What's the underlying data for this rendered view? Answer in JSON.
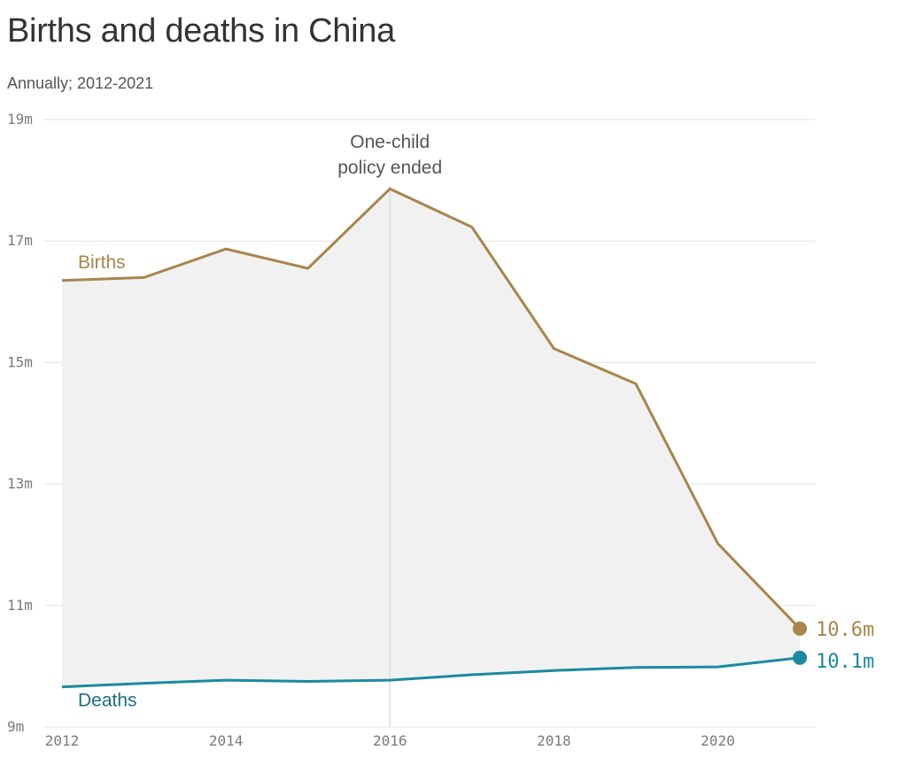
{
  "header": {
    "title": "Births and deaths in China",
    "subtitle": "Annually; 2012-2021"
  },
  "chart_data": {
    "type": "line",
    "x": [
      2012,
      2013,
      2014,
      2015,
      2016,
      2017,
      2018,
      2019,
      2020,
      2021
    ],
    "series": [
      {
        "name": "Births",
        "color": "#a8854a",
        "values": [
          16.35,
          16.4,
          16.87,
          16.55,
          17.86,
          17.23,
          15.23,
          14.65,
          12.02,
          10.62
        ],
        "end_label": "10.6m"
      },
      {
        "name": "Deaths",
        "color": "#1b8aa0",
        "values": [
          9.66,
          9.72,
          9.77,
          9.75,
          9.77,
          9.86,
          9.93,
          9.98,
          9.99,
          10.14
        ],
        "end_label": "10.1m"
      }
    ],
    "ylim": [
      9,
      19
    ],
    "xlim": [
      2012,
      2021
    ],
    "y_ticks": [
      9,
      11,
      13,
      15,
      17,
      19
    ],
    "y_tick_labels": [
      "9m",
      "11m",
      "13m",
      "15m",
      "17m",
      "19m"
    ],
    "x_ticks": [
      2012,
      2014,
      2016,
      2018,
      2020
    ],
    "x_tick_labels": [
      "2012",
      "2014",
      "2016",
      "2018",
      "2020"
    ],
    "annotation": {
      "x": 2016,
      "lines": [
        "One-child",
        "policy ended"
      ]
    },
    "area_fill_color": "#f1f1f1",
    "grid": true
  }
}
